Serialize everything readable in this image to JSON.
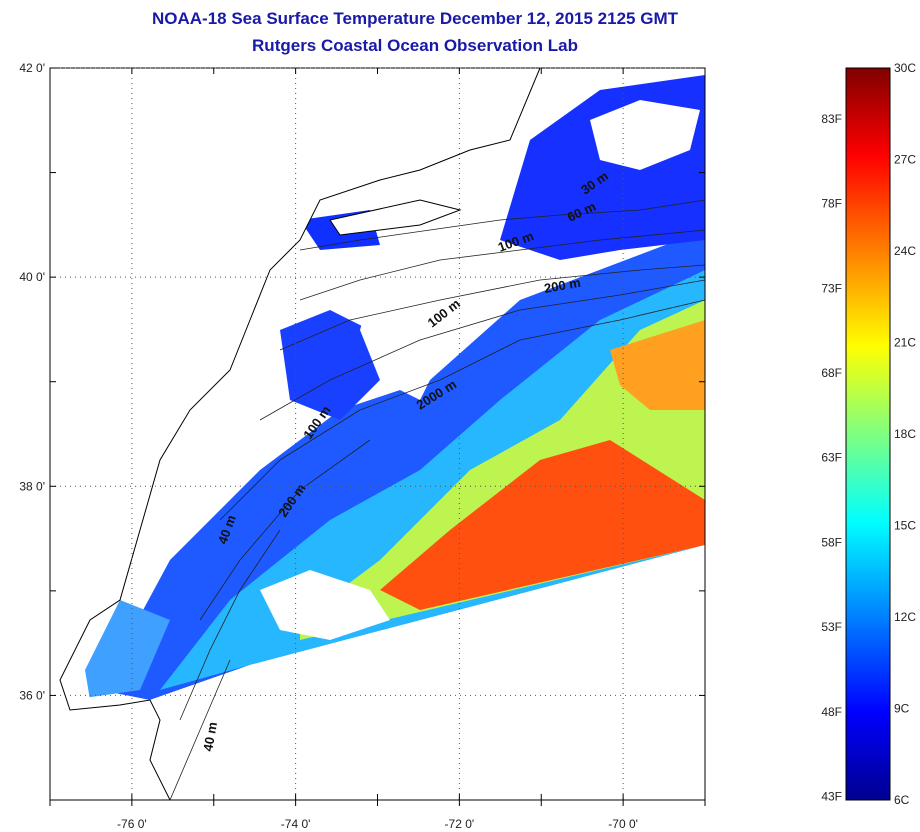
{
  "title": "NOAA-18 Sea Surface Temperature December 12, 2015 2125 GMT",
  "subtitle": "Rutgers Coastal Ocean Observation Lab",
  "map": {
    "lat_ticks": [
      "42 0'",
      "40 0'",
      "38 0'",
      "36 0'"
    ],
    "lon_ticks": [
      "-76 0'",
      "-74 0'",
      "-72 0'",
      "-70 0'"
    ],
    "lat_range": [
      35,
      42
    ],
    "lon_range": [
      -77,
      -69
    ],
    "grid": "dotted",
    "contour_labels": [
      "30 m",
      "60 m",
      "100 m",
      "200 m",
      "100 m",
      "2000 m",
      "100 m",
      "200 m",
      "40 m",
      "40 m"
    ]
  },
  "colorbar": {
    "celsius_labels": [
      "30C",
      "27C",
      "24C",
      "21C",
      "18C",
      "15C",
      "12C",
      "9C",
      "6C"
    ],
    "fahrenheit_labels": [
      "83F",
      "78F",
      "73F",
      "68F",
      "63F",
      "58F",
      "53F",
      "48F",
      "43F"
    ],
    "celsius_range": [
      6,
      30
    ],
    "colormap": "jet",
    "colors": [
      "#00008f",
      "#0000ff",
      "#00ffff",
      "#ffff00",
      "#ff0000",
      "#800000"
    ]
  }
}
